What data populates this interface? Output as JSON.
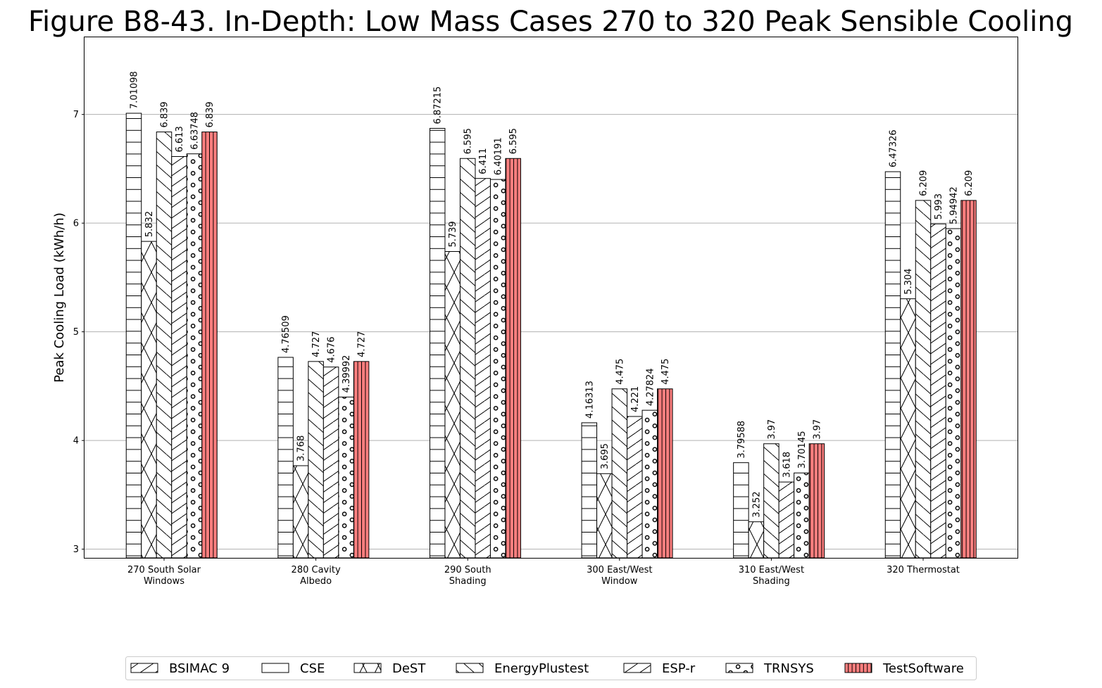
{
  "chart_data": {
    "type": "bar",
    "title": "Figure B8-43. In-Depth: Low Mass Cases 270 to 320 Peak Sensible Cooling",
    "xlabel": "",
    "ylabel": "Peak Cooling Load (kWh/h)",
    "ylim": [
      2.92,
      7.71
    ],
    "yticks": [
      3,
      4,
      5,
      6,
      7
    ],
    "grid": "horizontal",
    "legend_placement": "bottom-center",
    "categories": [
      [
        "270 South Solar",
        "Windows"
      ],
      [
        "280 Cavity",
        "Albedo"
      ],
      [
        "290 South",
        "Shading"
      ],
      [
        "300 East/West",
        "Window"
      ],
      [
        "310 East/West",
        "Shading"
      ],
      [
        "320 Thermostat"
      ]
    ],
    "series": [
      {
        "name": "BSIMAC 9",
        "pattern": "diag-ne",
        "color": "#ffffff",
        "values": [
          null,
          null,
          null,
          null,
          null,
          null
        ],
        "labels": [
          null,
          null,
          null,
          null,
          null,
          null
        ]
      },
      {
        "name": "CSE",
        "pattern": "horizontal",
        "color": "#ffffff",
        "values": [
          7.01098,
          4.76509,
          6.87215,
          4.16313,
          3.79588,
          6.47326
        ],
        "labels": [
          "7.01098",
          "4.76509",
          "6.87215",
          "4.16313",
          "3.79588",
          "6.47326"
        ]
      },
      {
        "name": "DeST",
        "pattern": "cross",
        "color": "#ffffff",
        "values": [
          5.832,
          3.768,
          5.739,
          3.695,
          3.252,
          5.304
        ],
        "labels": [
          "5.832",
          "3.768",
          "5.739",
          "3.695",
          "3.252",
          "5.304"
        ]
      },
      {
        "name": "EnergyPlustest",
        "pattern": "diag-nw",
        "color": "#ffffff",
        "values": [
          6.839,
          4.727,
          6.595,
          4.475,
          3.97,
          6.209
        ],
        "labels": [
          "6.839",
          "4.727",
          "6.595",
          "4.475",
          "3.97",
          "6.209"
        ]
      },
      {
        "name": "ESP-r",
        "pattern": "diag-ne",
        "color": "#ffffff",
        "values": [
          6.613,
          4.676,
          6.411,
          4.221,
          3.618,
          5.993
        ],
        "labels": [
          "6.613",
          "4.676",
          "6.411",
          "4.221",
          "3.618",
          "5.993"
        ]
      },
      {
        "name": "TRNSYS",
        "pattern": "circles",
        "color": "#ffffff",
        "values": [
          6.63748,
          4.39992,
          6.40191,
          4.27824,
          3.70145,
          5.94942
        ],
        "labels": [
          "6.63748",
          "4.39992",
          "6.40191",
          "4.27824",
          "3.70145",
          "5.94942"
        ]
      },
      {
        "name": "TestSoftware",
        "pattern": "vertical",
        "color": "#ff7f7f",
        "values": [
          6.839,
          4.727,
          6.595,
          4.475,
          3.97,
          6.209
        ],
        "labels": [
          "6.839",
          "4.727",
          "6.595",
          "4.475",
          "3.97",
          "6.209"
        ]
      }
    ]
  }
}
